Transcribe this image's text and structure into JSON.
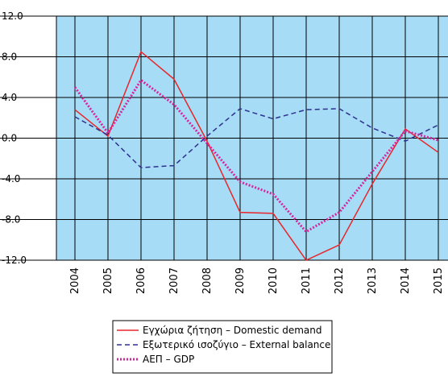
{
  "chart_data": {
    "type": "line",
    "categories": [
      "2004",
      "2005",
      "2006",
      "2007",
      "2008",
      "2009",
      "2010",
      "2011",
      "2012",
      "2013",
      "2014",
      "2015"
    ],
    "series": [
      {
        "name": "Εγχώρια ζήτηση – Domestic demand",
        "color": "#e8262b",
        "style": "solid",
        "values": [
          2.8,
          0.2,
          8.5,
          5.8,
          -0.3,
          -7.3,
          -7.4,
          -12.0,
          -10.5,
          -4.5,
          0.9,
          -1.4
        ]
      },
      {
        "name": "Εξωτερικό ισοζύγιο – External balance",
        "color": "#2e3192",
        "style": "dashed",
        "values": [
          2.1,
          0.3,
          -2.9,
          -2.7,
          0.2,
          2.9,
          1.9,
          2.8,
          2.9,
          1.0,
          -0.3,
          1.3
        ]
      },
      {
        "name": "ΑΕΠ – GDP",
        "color": "#d6249f",
        "style": "dotted",
        "values": [
          5.0,
          0.5,
          5.7,
          3.3,
          -0.5,
          -4.3,
          -5.5,
          -9.2,
          -7.3,
          -3.3,
          0.7,
          -0.2
        ]
      }
    ],
    "ylim": [
      -12,
      12
    ],
    "yticks": [
      {
        "value": 12,
        "label": "12.0"
      },
      {
        "value": 8,
        "label": "8.0"
      },
      {
        "value": 4,
        "label": "4.0"
      },
      {
        "value": 0,
        "label": "0.0"
      },
      {
        "value": -4,
        "label": "-4.0"
      },
      {
        "value": -8,
        "label": "-8.0"
      },
      {
        "value": -12,
        "label": "-12.0"
      }
    ],
    "grid": true,
    "background": "#a6dcf5"
  }
}
